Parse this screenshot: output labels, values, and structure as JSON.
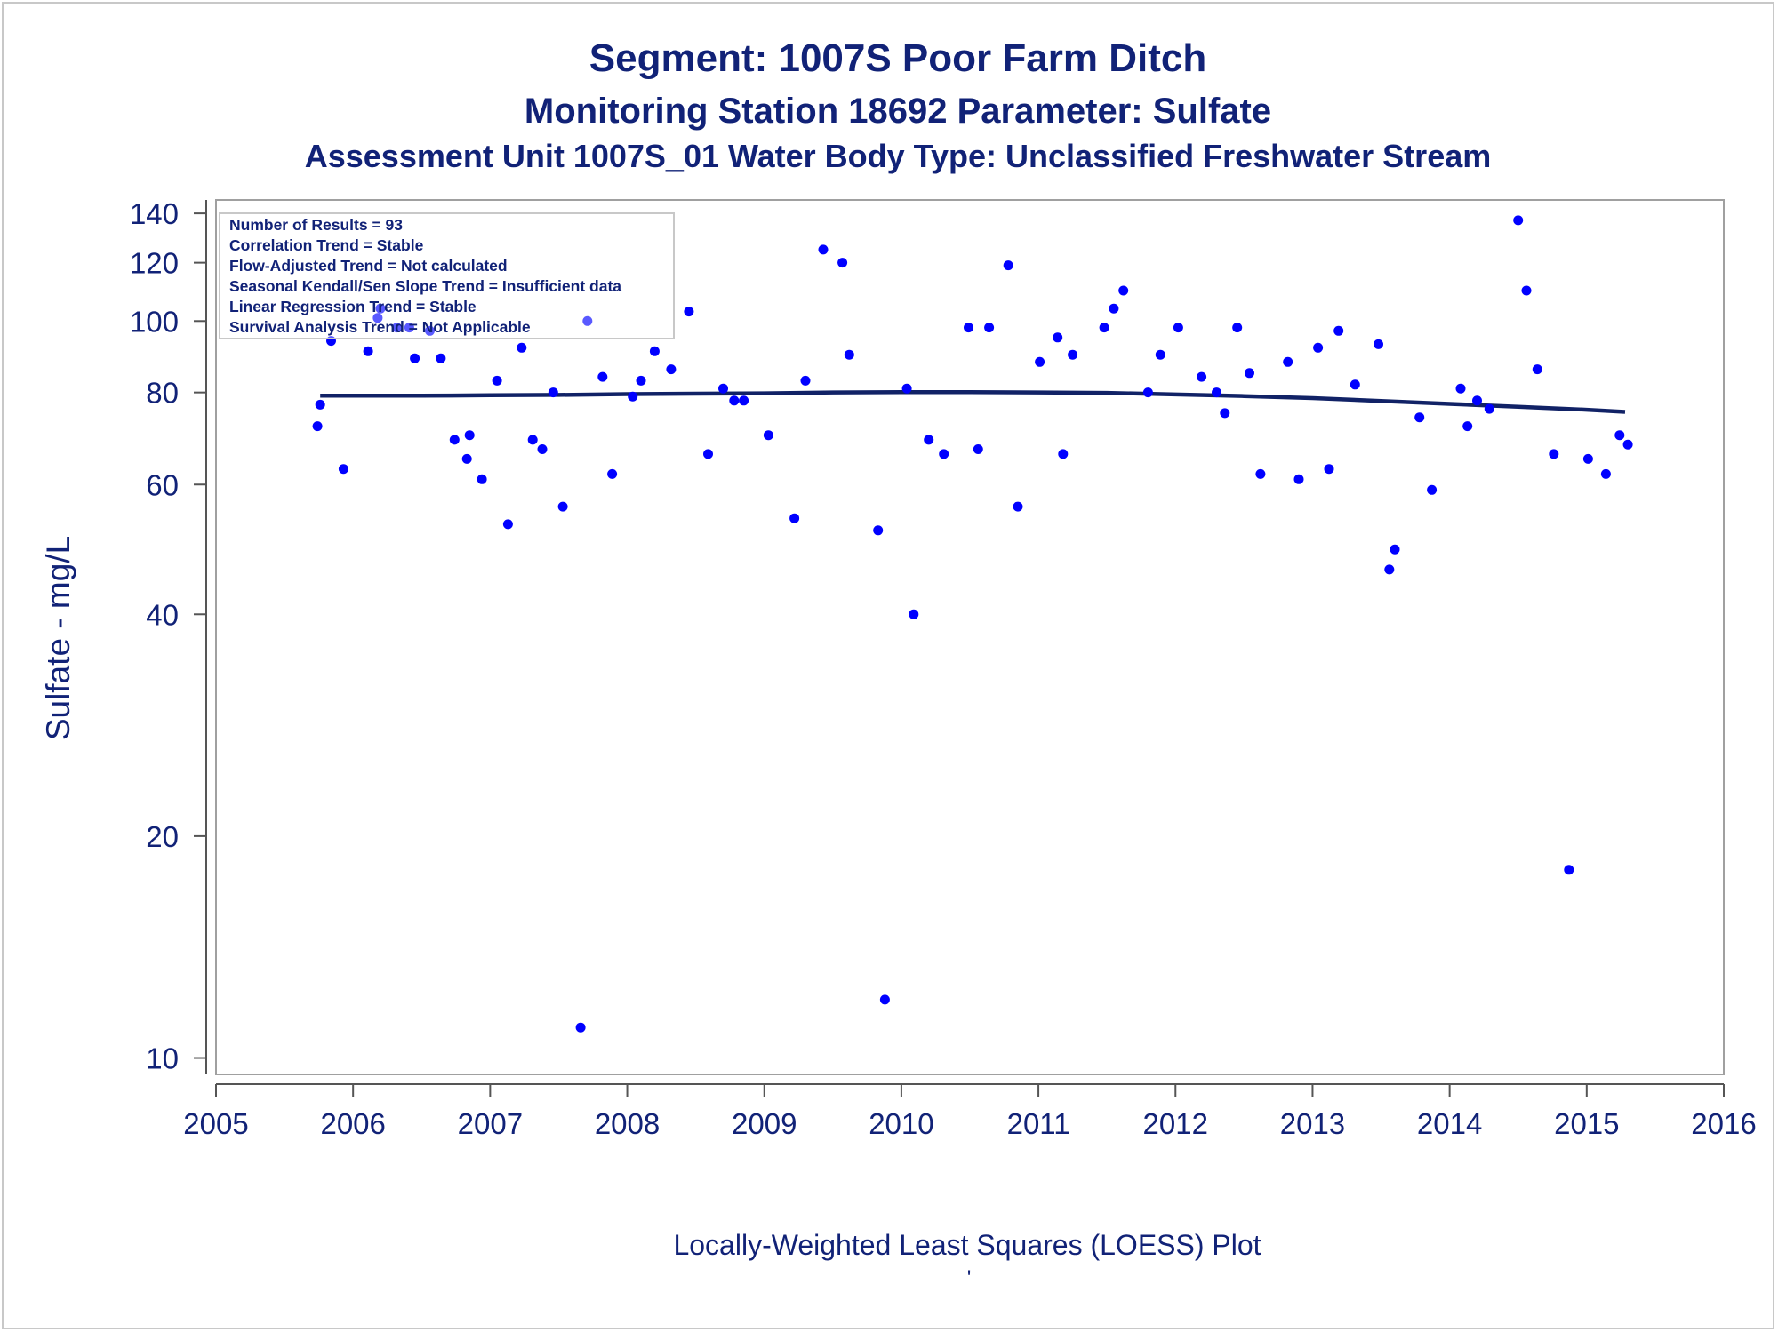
{
  "chart_data": {
    "type": "scatter",
    "title": "Segment: 1007S  Poor Farm Ditch",
    "subtitle": "Monitoring Station 18692 Parameter: Sulfate",
    "subtitle2": "Assessment Unit 1007S_01   Water Body Type: Unclassified Freshwater Stream",
    "xlabel": "",
    "ylabel": "Sulfate - mg/L",
    "footnote": "Locally-Weighted Least Squares (LOESS) Plot",
    "footnote_mark": "'",
    "y_scale": "log",
    "xlim": [
      2005,
      2016
    ],
    "ylim": [
      9.5,
      146
    ],
    "x_ticks": [
      2005,
      2006,
      2007,
      2008,
      2009,
      2010,
      2011,
      2012,
      2013,
      2014,
      2015,
      2016
    ],
    "x_tick_labels": [
      "2005",
      "2006",
      "2007",
      "2008",
      "2009",
      "2010",
      "2011",
      "2012",
      "2013",
      "2014",
      "2015",
      "2016"
    ],
    "y_ticks": [
      10,
      20,
      40,
      60,
      80,
      100,
      120,
      140
    ],
    "y_tick_labels": [
      "10",
      "20",
      "40",
      "60",
      "80",
      "100",
      "120",
      "140"
    ],
    "grid": false,
    "legend_placement": "top-left",
    "marker_color": "#0000ff",
    "line_color": "#112266",
    "stats": [
      "Number of Results = 93",
      "Correlation Trend = Stable",
      "Flow-Adjusted Trend = Not calculated",
      "Seasonal Kendall/Sen Slope Trend = Insufficient data",
      "Linear Regression Trend = Stable",
      "Survival Analysis Trend = Not Applicable"
    ],
    "series": [
      {
        "type": "scatter",
        "points": [
          [
            2005.74,
            72
          ],
          [
            2005.76,
            77
          ],
          [
            2005.84,
            94
          ],
          [
            2005.93,
            63
          ],
          [
            2006.11,
            91
          ],
          [
            2006.18,
            101
          ],
          [
            2006.2,
            104
          ],
          [
            2006.32,
            98
          ],
          [
            2006.41,
            98
          ],
          [
            2006.45,
            89
          ],
          [
            2006.56,
            97
          ],
          [
            2006.64,
            89
          ],
          [
            2006.74,
            69
          ],
          [
            2006.83,
            65
          ],
          [
            2006.85,
            70
          ],
          [
            2006.94,
            61
          ],
          [
            2007.05,
            83
          ],
          [
            2007.13,
            53
          ],
          [
            2007.23,
            92
          ],
          [
            2007.31,
            69
          ],
          [
            2007.38,
            67
          ],
          [
            2007.46,
            80
          ],
          [
            2007.53,
            56
          ],
          [
            2007.66,
            11
          ],
          [
            2007.71,
            100
          ],
          [
            2007.82,
            84
          ],
          [
            2007.89,
            62
          ],
          [
            2008.04,
            79
          ],
          [
            2008.1,
            83
          ],
          [
            2008.2,
            91
          ],
          [
            2008.32,
            86
          ],
          [
            2008.45,
            103
          ],
          [
            2008.59,
            66
          ],
          [
            2008.7,
            81
          ],
          [
            2008.78,
            78
          ],
          [
            2008.85,
            78
          ],
          [
            2009.03,
            70
          ],
          [
            2009.22,
            54
          ],
          [
            2009.3,
            83
          ],
          [
            2009.43,
            125
          ],
          [
            2009.57,
            120
          ],
          [
            2009.62,
            90
          ],
          [
            2009.83,
            52
          ],
          [
            2009.88,
            12
          ],
          [
            2010.04,
            81
          ],
          [
            2010.09,
            40
          ],
          [
            2010.2,
            69
          ],
          [
            2010.31,
            66
          ],
          [
            2010.49,
            98
          ],
          [
            2010.56,
            67
          ],
          [
            2010.64,
            98
          ],
          [
            2010.78,
            119
          ],
          [
            2010.85,
            56
          ],
          [
            2011.01,
            88
          ],
          [
            2011.14,
            95
          ],
          [
            2011.18,
            66
          ],
          [
            2011.25,
            90
          ],
          [
            2011.48,
            98
          ],
          [
            2011.55,
            104
          ],
          [
            2011.62,
            110
          ],
          [
            2011.8,
            80
          ],
          [
            2011.89,
            90
          ],
          [
            2012.02,
            98
          ],
          [
            2012.19,
            84
          ],
          [
            2012.3,
            80
          ],
          [
            2012.36,
            75
          ],
          [
            2012.45,
            98
          ],
          [
            2012.54,
            85
          ],
          [
            2012.62,
            62
          ],
          [
            2012.82,
            88
          ],
          [
            2012.9,
            61
          ],
          [
            2013.04,
            92
          ],
          [
            2013.12,
            63
          ],
          [
            2013.19,
            97
          ],
          [
            2013.31,
            82
          ],
          [
            2013.48,
            93
          ],
          [
            2013.56,
            46
          ],
          [
            2013.6,
            49
          ],
          [
            2013.78,
            74
          ],
          [
            2013.87,
            59
          ],
          [
            2014.08,
            81
          ],
          [
            2014.13,
            72
          ],
          [
            2014.2,
            78
          ],
          [
            2014.29,
            76
          ],
          [
            2014.5,
            137
          ],
          [
            2014.56,
            110
          ],
          [
            2014.64,
            86
          ],
          [
            2014.76,
            66
          ],
          [
            2014.87,
            18
          ],
          [
            2015.01,
            65
          ],
          [
            2015.14,
            62
          ],
          [
            2015.24,
            70
          ],
          [
            2015.3,
            68
          ]
        ]
      },
      {
        "type": "line",
        "points": [
          [
            2005.76,
            79.2
          ],
          [
            2006.5,
            79.2
          ],
          [
            2007.0,
            79.3
          ],
          [
            2007.5,
            79.4
          ],
          [
            2008.0,
            79.6
          ],
          [
            2008.5,
            79.7
          ],
          [
            2009.0,
            79.8
          ],
          [
            2009.5,
            80.0
          ],
          [
            2010.0,
            80.1
          ],
          [
            2010.5,
            80.1
          ],
          [
            2011.0,
            80.0
          ],
          [
            2011.5,
            79.9
          ],
          [
            2012.0,
            79.5
          ],
          [
            2012.5,
            79.1
          ],
          [
            2013.0,
            78.6
          ],
          [
            2013.5,
            77.9
          ],
          [
            2014.0,
            77.2
          ],
          [
            2014.5,
            76.5
          ],
          [
            2015.0,
            75.8
          ],
          [
            2015.28,
            75.3
          ]
        ]
      }
    ]
  }
}
